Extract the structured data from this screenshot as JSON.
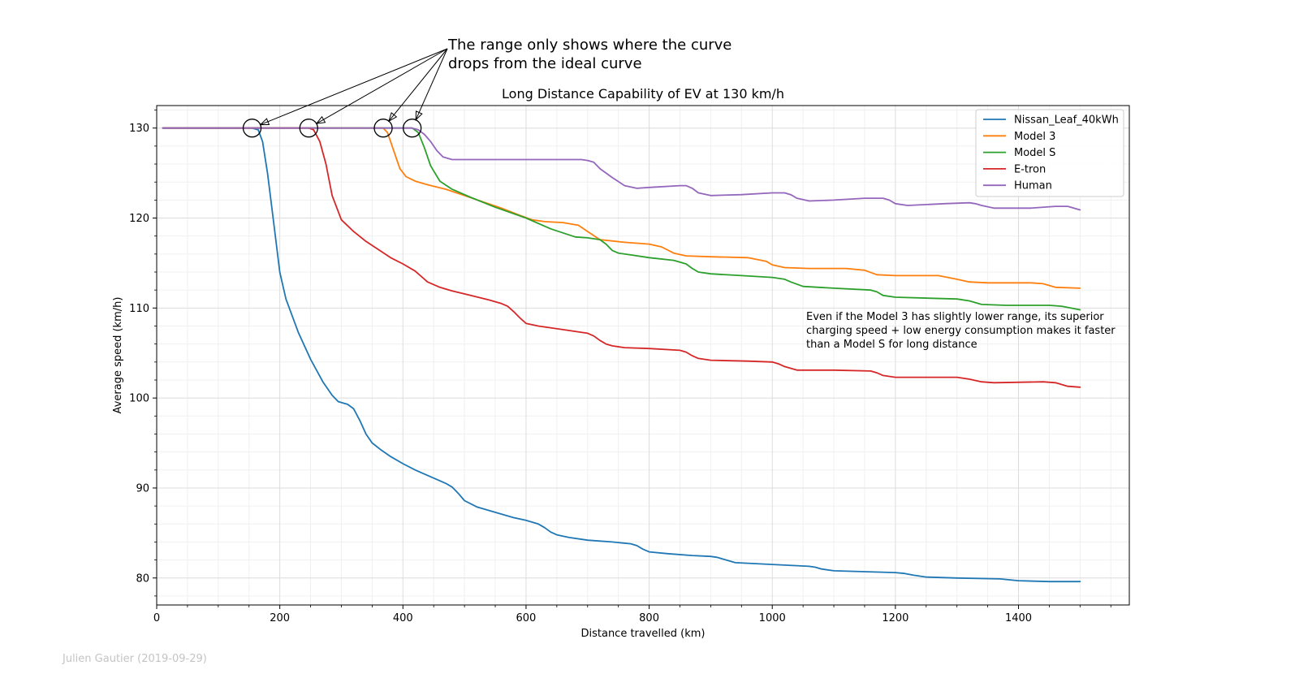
{
  "chart_data": {
    "type": "line",
    "title": "Long Distance Capability of EV at 130 km/h",
    "xlabel": "Distance travelled (km)",
    "ylabel": "Average speed (km/h)",
    "xlim": [
      0,
      1580
    ],
    "ylim": [
      77,
      132.5
    ],
    "xticks": [
      0,
      200,
      400,
      600,
      800,
      1000,
      1200,
      1400
    ],
    "yticks": [
      80,
      90,
      100,
      110,
      120,
      130
    ],
    "grid": true,
    "legend_position": "top-right",
    "annotation_top": [
      "The range only shows where the curve",
      "drops from the ideal curve"
    ],
    "annotation_note": [
      "Even if the Model 3 has slightly lower range, its superior",
      "charging speed + low energy consumption makes it faster",
      "than a Model S for long distance"
    ],
    "credit": "Julien Gautier (2019-09-29)",
    "highlight_points": [
      [
        155,
        130
      ],
      [
        247,
        130
      ],
      [
        368,
        130
      ],
      [
        415,
        130
      ]
    ],
    "series": [
      {
        "name": "Nissan_Leaf_40kWh",
        "color": "#1f77b4",
        "x": [
          10,
          155,
          165,
          172,
          180,
          190,
          200,
          210,
          230,
          250,
          270,
          285,
          295,
          310,
          320,
          330,
          340,
          350,
          365,
          380,
          400,
          420,
          440,
          460,
          470,
          480,
          490,
          500,
          520,
          550,
          580,
          600,
          620,
          630,
          640,
          650,
          670,
          700,
          740,
          770,
          780,
          790,
          800,
          830,
          870,
          900,
          910,
          920,
          940,
          1000,
          1060,
          1070,
          1080,
          1100,
          1150,
          1200,
          1215,
          1230,
          1250,
          1300,
          1370,
          1385,
          1400,
          1450,
          1500
        ],
        "y": [
          130,
          130,
          129.8,
          128.5,
          125,
          119.5,
          114,
          111,
          107.3,
          104.3,
          101.8,
          100.3,
          99.6,
          99.3,
          98.8,
          97.5,
          96,
          95,
          94.2,
          93.5,
          92.7,
          92,
          91.4,
          90.8,
          90.5,
          90.1,
          89.4,
          88.6,
          87.9,
          87.3,
          86.7,
          86.4,
          86,
          85.6,
          85.1,
          84.8,
          84.5,
          84.2,
          84,
          83.8,
          83.6,
          83.2,
          82.9,
          82.7,
          82.5,
          82.4,
          82.3,
          82.1,
          81.7,
          81.5,
          81.3,
          81.2,
          81,
          80.8,
          80.7,
          80.6,
          80.5,
          80.3,
          80.1,
          80,
          79.9,
          79.8,
          79.7,
          79.6,
          79.6
        ]
      },
      {
        "name": "Model 3",
        "color": "#ff7f0e",
        "x": [
          10,
          368,
          375,
          385,
          395,
          405,
          420,
          440,
          470,
          500,
          530,
          560,
          590,
          610,
          630,
          660,
          685,
          700,
          720,
          760,
          800,
          820,
          840,
          860,
          900,
          960,
          990,
          1000,
          1020,
          1060,
          1120,
          1150,
          1170,
          1200,
          1270,
          1300,
          1320,
          1350,
          1420,
          1440,
          1460,
          1500
        ],
        "y": [
          130,
          130,
          129.5,
          127.5,
          125.5,
          124.6,
          124.1,
          123.7,
          123.2,
          122.5,
          121.8,
          121.1,
          120.3,
          119.8,
          119.6,
          119.5,
          119.2,
          118.5,
          117.6,
          117.3,
          117.1,
          116.8,
          116.1,
          115.8,
          115.7,
          115.6,
          115.2,
          114.8,
          114.5,
          114.4,
          114.4,
          114.2,
          113.7,
          113.6,
          113.6,
          113.2,
          112.9,
          112.8,
          112.8,
          112.7,
          112.3,
          112.2
        ]
      },
      {
        "name": "Model S",
        "color": "#2ca02c",
        "x": [
          10,
          415,
          425,
          435,
          445,
          460,
          480,
          510,
          550,
          600,
          640,
          680,
          700,
          720,
          730,
          740,
          750,
          770,
          800,
          840,
          860,
          870,
          880,
          900,
          950,
          1000,
          1020,
          1030,
          1050,
          1100,
          1160,
          1170,
          1180,
          1200,
          1300,
          1320,
          1340,
          1380,
          1450,
          1470,
          1500
        ],
        "y": [
          130,
          130,
          129.5,
          127.8,
          125.8,
          124.1,
          123.2,
          122.3,
          121.2,
          120,
          118.8,
          117.9,
          117.8,
          117.6,
          117.1,
          116.4,
          116.1,
          115.9,
          115.6,
          115.3,
          114.9,
          114.4,
          114,
          113.8,
          113.6,
          113.4,
          113.2,
          112.9,
          112.4,
          112.2,
          112,
          111.8,
          111.4,
          111.2,
          111,
          110.8,
          110.4,
          110.3,
          110.3,
          110.2,
          109.8
        ]
      },
      {
        "name": "E-tron",
        "color": "#d62728",
        "x": [
          10,
          247,
          255,
          265,
          275,
          285,
          300,
          320,
          340,
          360,
          380,
          400,
          420,
          430,
          440,
          460,
          480,
          510,
          540,
          560,
          570,
          580,
          590,
          600,
          620,
          660,
          700,
          710,
          720,
          730,
          740,
          760,
          800,
          850,
          860,
          870,
          880,
          900,
          960,
          1000,
          1010,
          1020,
          1040,
          1100,
          1160,
          1170,
          1180,
          1200,
          1300,
          1320,
          1340,
          1360,
          1440,
          1460,
          1480,
          1500
        ],
        "y": [
          130,
          130,
          129.8,
          128.5,
          126,
          122.5,
          119.8,
          118.5,
          117.4,
          116.5,
          115.6,
          114.9,
          114.1,
          113.5,
          112.9,
          112.3,
          111.9,
          111.4,
          110.9,
          110.5,
          110.2,
          109.6,
          108.9,
          108.3,
          108,
          107.6,
          107.2,
          106.9,
          106.4,
          106,
          105.8,
          105.6,
          105.5,
          105.3,
          105.1,
          104.7,
          104.4,
          104.2,
          104.1,
          104,
          103.8,
          103.5,
          103.1,
          103.1,
          103,
          102.8,
          102.5,
          102.3,
          102.3,
          102.1,
          101.8,
          101.7,
          101.8,
          101.7,
          101.3,
          101.2
        ]
      },
      {
        "name": "Human",
        "color": "#9467bd",
        "x": [
          10,
          415,
          425,
          435,
          445,
          455,
          465,
          480,
          520,
          600,
          690,
          700,
          710,
          720,
          740,
          760,
          780,
          800,
          850,
          860,
          870,
          880,
          900,
          950,
          1000,
          1020,
          1030,
          1040,
          1060,
          1100,
          1150,
          1180,
          1190,
          1200,
          1220,
          1280,
          1320,
          1330,
          1340,
          1360,
          1420,
          1460,
          1480,
          1500
        ],
        "y": [
          130,
          130,
          129.8,
          129.3,
          128.5,
          127.5,
          126.8,
          126.5,
          126.5,
          126.5,
          126.5,
          126.4,
          126.2,
          125.5,
          124.5,
          123.6,
          123.3,
          123.4,
          123.6,
          123.6,
          123.3,
          122.8,
          122.5,
          122.6,
          122.8,
          122.8,
          122.6,
          122.2,
          121.9,
          122,
          122.2,
          122.2,
          122,
          121.6,
          121.4,
          121.6,
          121.7,
          121.6,
          121.4,
          121.1,
          121.1,
          121.3,
          121.3,
          120.9
        ]
      }
    ]
  }
}
